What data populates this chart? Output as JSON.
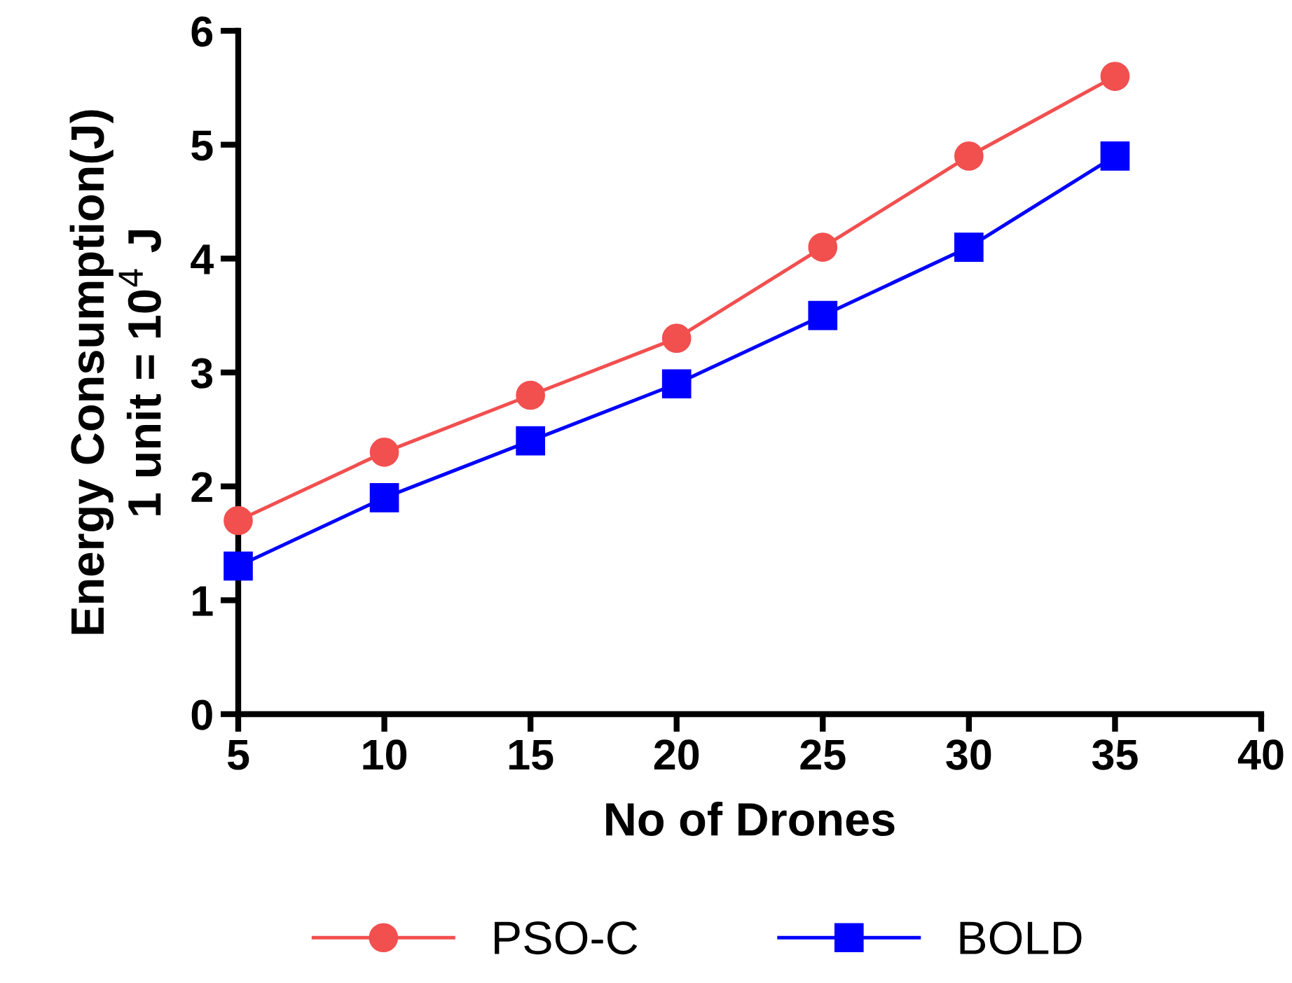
{
  "chart_data": {
    "type": "line",
    "xlabel": "No of Drones",
    "ylabel": "Energy Consumption(J)\n1 unit = 10$^{4}$ J",
    "x": [
      5,
      10,
      15,
      20,
      25,
      30,
      35
    ],
    "series": [
      {
        "name": "PSO-C",
        "color": "#f24f4f",
        "marker": "circle",
        "values": [
          1.7,
          2.3,
          2.8,
          3.3,
          4.1,
          4.9,
          5.6
        ]
      },
      {
        "name": "BOLD",
        "color": "#0000ff",
        "marker": "square",
        "values": [
          1.3,
          1.9,
          2.4,
          2.9,
          3.5,
          4.1,
          4.9
        ]
      }
    ],
    "xlim": [
      5,
      40
    ],
    "xticks": [
      5,
      10,
      15,
      20,
      25,
      30,
      35,
      40
    ],
    "ylim": [
      0,
      6
    ],
    "yticks": [
      0,
      1,
      2,
      3,
      4,
      5,
      6
    ],
    "grid": false,
    "legend": "bottom",
    "line_style": "solid"
  }
}
